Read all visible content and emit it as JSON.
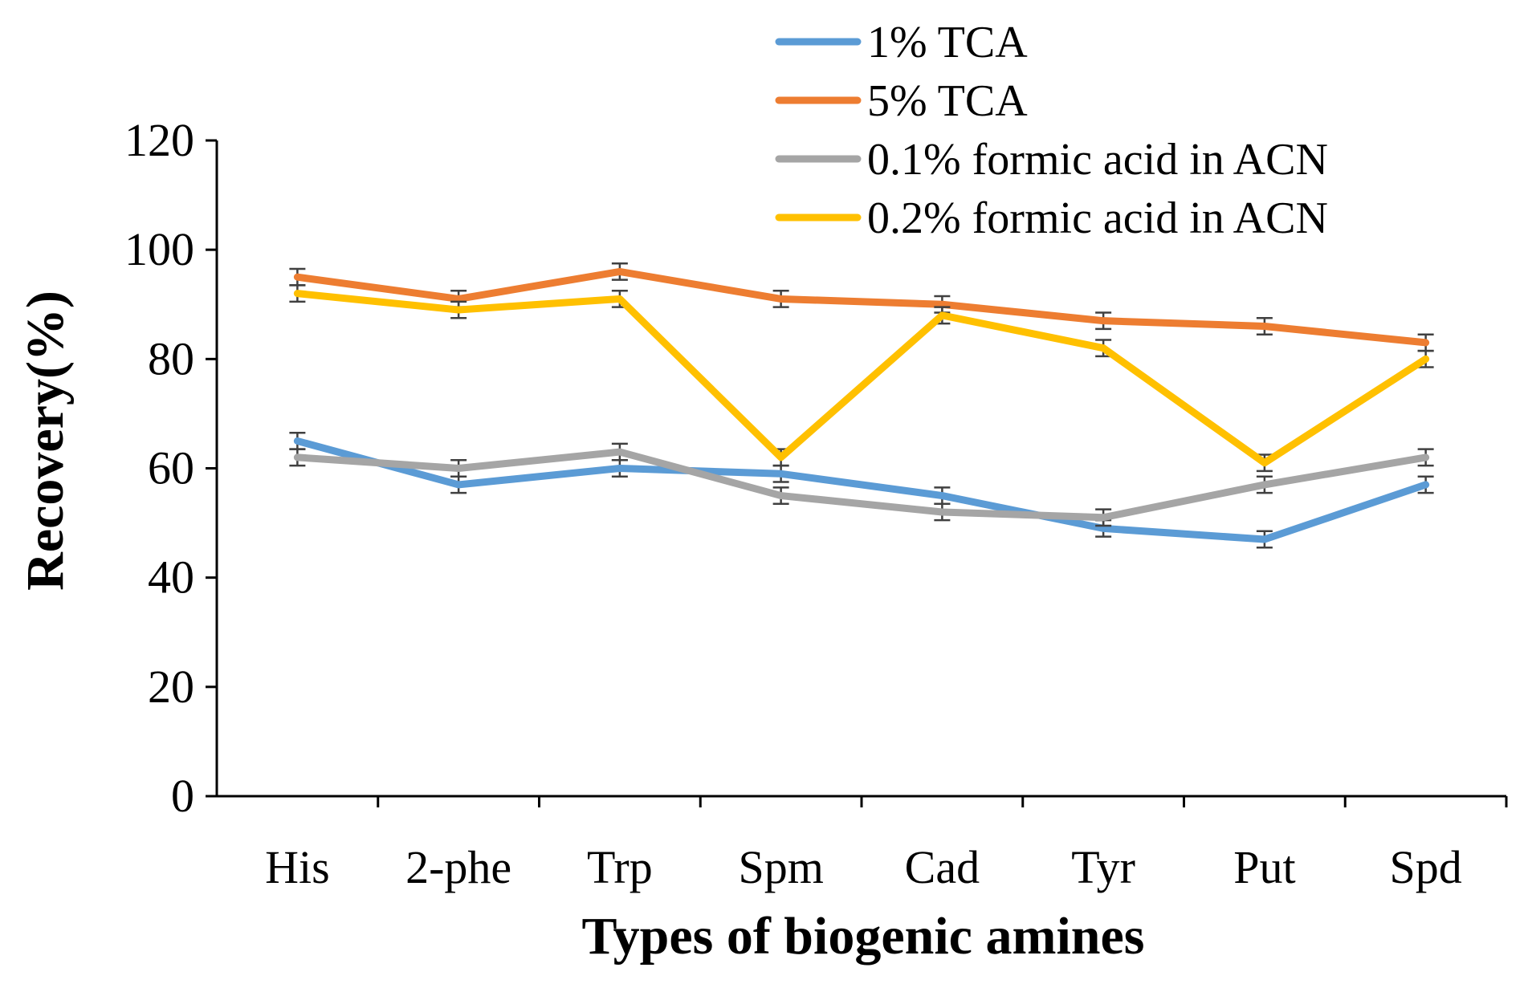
{
  "chart_data": {
    "type": "line",
    "categories": [
      "His",
      "2-phe",
      "Trp",
      "Spm",
      "Cad",
      "Tyr",
      "Put",
      "Spd"
    ],
    "series": [
      {
        "name": "1% TCA",
        "color": "#5B9BD5",
        "values": [
          65,
          57,
          60,
          59,
          55,
          49,
          47,
          57
        ],
        "error": [
          1.5,
          1.5,
          1.5,
          1.5,
          1.5,
          1.5,
          1.5,
          1.5
        ]
      },
      {
        "name": "5% TCA",
        "color": "#ED7D31",
        "values": [
          95,
          91,
          96,
          91,
          90,
          87,
          86,
          83
        ],
        "error": [
          1.5,
          1.5,
          1.5,
          1.5,
          1.5,
          1.5,
          1.5,
          1.5
        ]
      },
      {
        "name": "0.1% formic acid in ACN",
        "color": "#A5A5A5",
        "values": [
          62,
          60,
          63,
          55,
          52,
          51,
          57,
          62
        ],
        "error": [
          1.5,
          1.5,
          1.5,
          1.5,
          1.5,
          1.5,
          1.5,
          1.5
        ]
      },
      {
        "name": "0.2% formic acid in ACN",
        "color": "#FFC000",
        "values": [
          92,
          89,
          91,
          62,
          88,
          82,
          61,
          80
        ],
        "error": [
          1.5,
          1.5,
          1.5,
          1.5,
          1.5,
          1.5,
          1.5,
          1.5
        ]
      }
    ],
    "title": "",
    "xlabel": "Types of biogenic amines",
    "ylabel": "Recovery(%)",
    "ylim": [
      0,
      120
    ],
    "yticks": [
      "0",
      "20",
      "40",
      "60",
      "80",
      "100",
      "120"
    ],
    "grid": false,
    "legend_position": "top-right"
  }
}
